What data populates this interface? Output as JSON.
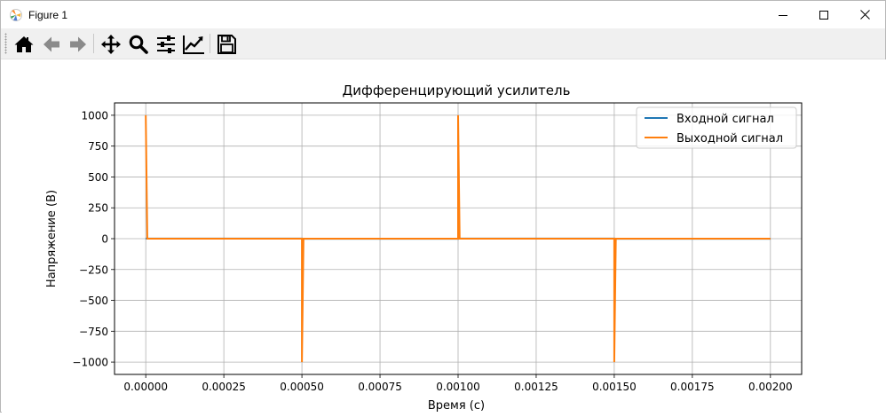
{
  "window": {
    "title": "Figure 1",
    "app_icon": "matplotlib-icon",
    "controls": [
      "minimize-icon",
      "maximize-icon",
      "close-icon"
    ]
  },
  "toolbar": {
    "buttons": [
      {
        "name": "home-button",
        "icon": "home-icon"
      },
      {
        "name": "back-button",
        "icon": "arrow-left-icon"
      },
      {
        "name": "forward-button",
        "icon": "arrow-right-icon"
      },
      {
        "name": "pan-button",
        "icon": "move-icon"
      },
      {
        "name": "zoom-button",
        "icon": "search-icon"
      },
      {
        "name": "subplots-button",
        "icon": "sliders-icon"
      },
      {
        "name": "edit-axis-button",
        "icon": "line-chart-icon"
      },
      {
        "name": "save-button",
        "icon": "floppy-disk-icon"
      }
    ]
  },
  "chart_data": {
    "type": "line",
    "title": "Дифференцирующий усилитель",
    "xlabel": "Время (с)",
    "ylabel": "Напряжение (В)",
    "xlim": [
      -0.0001,
      0.0021
    ],
    "ylim": [
      -1100,
      1100
    ],
    "xticks": [
      0.0,
      0.00025,
      0.0005,
      0.00075,
      0.001,
      0.00125,
      0.0015,
      0.00175,
      0.002
    ],
    "xtick_labels": [
      "0.00000",
      "0.00025",
      "0.00050",
      "0.00075",
      "0.00100",
      "0.00125",
      "0.00150",
      "0.00175",
      "0.00200"
    ],
    "yticks": [
      1000,
      750,
      500,
      250,
      0,
      -250,
      -500,
      -750,
      -1000
    ],
    "ytick_labels": [
      "1000",
      "750",
      "500",
      "250",
      "0",
      "−250",
      "−500",
      "−750",
      "−1000"
    ],
    "grid": true,
    "legend_position": "top-right",
    "series": [
      {
        "name": "Входной сигнал",
        "color": "#1f77b4",
        "x": [
          0.0,
          0.0005,
          0.0005,
          0.001,
          0.001,
          0.0015,
          0.0015,
          0.002
        ],
        "y": [
          1,
          1,
          -1,
          -1,
          1,
          1,
          -1,
          -1
        ]
      },
      {
        "name": "Выходной сигнал",
        "color": "#ff7f0e",
        "x": [
          0.0,
          5e-06,
          0.0005,
          0.0005,
          0.000505,
          0.001,
          0.001,
          0.001005,
          0.0015,
          0.0015,
          0.001505,
          0.002
        ],
        "y": [
          1000,
          0,
          0,
          -1000,
          0,
          0,
          1000,
          0,
          0,
          -1000,
          0,
          0
        ]
      }
    ]
  }
}
